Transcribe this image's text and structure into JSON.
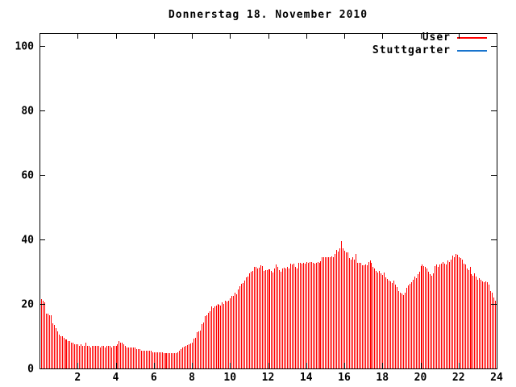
{
  "chart_data": {
    "type": "bar",
    "title": "Donnerstag 18. November 2010",
    "xlabel": "",
    "ylabel": "",
    "xlim": [
      0,
      24
    ],
    "ylim": [
      0,
      104
    ],
    "xticks": [
      2,
      4,
      6,
      8,
      10,
      12,
      14,
      16,
      18,
      20,
      22,
      24
    ],
    "yticks": [
      0,
      20,
      40,
      60,
      80,
      100
    ],
    "grid": false,
    "legend_position": "inside-top-right",
    "bar_style": "impulses",
    "sample_interval_minutes": 5,
    "first_sample": "00:05",
    "last_sample": "23:55",
    "series": [
      {
        "name": "User",
        "color": "#ff0000",
        "values": [
          21.5,
          21,
          20.5,
          17,
          17,
          16.5,
          16.5,
          14,
          13.5,
          12.5,
          11.5,
          10.5,
          10,
          10,
          9.5,
          9,
          9,
          8.5,
          8.5,
          8,
          8,
          7.5,
          7.5,
          7.5,
          7,
          7.5,
          7,
          7,
          8,
          7,
          7,
          6.5,
          7,
          7,
          7,
          7,
          7,
          6.5,
          7,
          7,
          6.5,
          7,
          7,
          7,
          6.5,
          7,
          7,
          7,
          7.5,
          8.5,
          8,
          8,
          7.5,
          7,
          6.5,
          6.5,
          6.5,
          6.5,
          6.5,
          6.5,
          6,
          6,
          6,
          5.5,
          5.5,
          5.5,
          5.5,
          5.5,
          5.5,
          5.5,
          5,
          5,
          5,
          5,
          5,
          5,
          5,
          4.75,
          4.75,
          4.75,
          4.75,
          4.75,
          4.75,
          4.75,
          4.75,
          4.75,
          5,
          5.5,
          6,
          6.5,
          6.75,
          7,
          7.25,
          7.5,
          7.75,
          8,
          9.25,
          9.5,
          11.25,
          11.5,
          11.75,
          13.75,
          14.25,
          16.25,
          16.5,
          17.25,
          17.75,
          19.25,
          18.75,
          19.25,
          19.5,
          20,
          19.75,
          19.5,
          20.5,
          20,
          21,
          20.75,
          21,
          21.75,
          22.5,
          22.5,
          23.5,
          23,
          24.5,
          25.5,
          26.25,
          26.5,
          27.25,
          28.25,
          28.5,
          29.5,
          30,
          30.25,
          31.5,
          31.5,
          31,
          31.25,
          32,
          31.75,
          30.25,
          30.5,
          30.5,
          30.75,
          30.75,
          30.25,
          29.75,
          31,
          32.25,
          31.5,
          30.5,
          30,
          31,
          31.25,
          31,
          31.5,
          31,
          32.5,
          32.25,
          32.5,
          31.5,
          31,
          32.75,
          32.75,
          32.5,
          32.75,
          32.5,
          33,
          32.75,
          33,
          33,
          32.75,
          32.5,
          32.75,
          33,
          32.75,
          33.25,
          34.5,
          34.5,
          34.5,
          34.5,
          34.5,
          34.5,
          34.75,
          34.5,
          35.5,
          36.75,
          36.25,
          37.25,
          39.5,
          37.25,
          36.5,
          36,
          36,
          34.25,
          33.75,
          34.5,
          33.75,
          35.5,
          32.75,
          32.75,
          32.75,
          32,
          32,
          32.25,
          32,
          33,
          33.5,
          32.75,
          31.5,
          31,
          30.25,
          29.75,
          30.25,
          29.5,
          29,
          29.75,
          28.25,
          27.75,
          27.25,
          27,
          26.5,
          27.25,
          26,
          25.25,
          24,
          23.5,
          23.25,
          22.75,
          23.5,
          25,
          25.75,
          26.25,
          26.75,
          27.5,
          28.5,
          28,
          29.25,
          30,
          31.75,
          32.25,
          31.75,
          31.5,
          31,
          30,
          29.25,
          28.75,
          29.5,
          31.75,
          32.25,
          31.5,
          32.25,
          32.5,
          33,
          32.5,
          32.25,
          33.5,
          33,
          33.75,
          35,
          34.5,
          35.5,
          35.25,
          34.5,
          34.25,
          33.75,
          32.5,
          32.25,
          31,
          30.5,
          31.5,
          29.25,
          28.75,
          29.5,
          28.5,
          27.5,
          28,
          27.5,
          27,
          26.75,
          27,
          26.75,
          26,
          24,
          23.5,
          22,
          21
        ]
      },
      {
        "name": "Stuttgarter",
        "color": "#1874cd",
        "values": []
      }
    ]
  }
}
